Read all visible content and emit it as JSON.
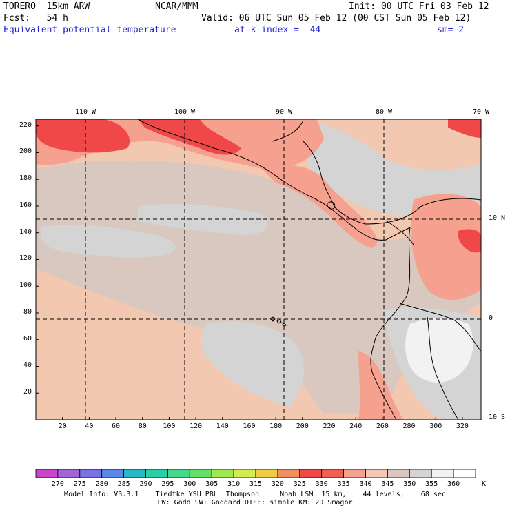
{
  "header": {
    "model": "TORERO  15km ARW",
    "center": "NCAR/MMM",
    "init": "Init: 00 UTC Fri 03 Feb 12",
    "fcst": "Fcst:   54 h",
    "valid": "Valid: 06 UTC Sun 05 Feb 12 (00 CST Sun 05 Feb 12)",
    "field": "Equivalent potential temperature",
    "level": "at k-index =  44",
    "smooth": "sm= 2"
  },
  "axes": {
    "x_ticks": [
      "20",
      "40",
      "60",
      "80",
      "100",
      "120",
      "140",
      "160",
      "180",
      "200",
      "220",
      "240",
      "260",
      "280",
      "300",
      "320"
    ],
    "y_ticks": [
      "220",
      "200",
      "180",
      "160",
      "140",
      "120",
      "100",
      "80",
      "60",
      "40",
      "20"
    ],
    "lon_labels": [
      "110 W",
      "100 W",
      "90 W",
      "80 W",
      "70 W"
    ],
    "lat_labels": [
      "10 N",
      "0",
      "10 S"
    ]
  },
  "colorbar": {
    "labels": [
      "270",
      "275",
      "280",
      "285",
      "290",
      "295",
      "300",
      "305",
      "310",
      "315",
      "320",
      "325",
      "330",
      "335",
      "340",
      "345",
      "350",
      "355",
      "360"
    ],
    "unit": "K",
    "colors": [
      "#cc44cc",
      "#a066d8",
      "#7a70e8",
      "#5a88e8",
      "#28b8c8",
      "#28d0a8",
      "#44d888",
      "#66e066",
      "#a0e850",
      "#d4ec50",
      "#f0cc44",
      "#f09060",
      "#f04848",
      "#f06050",
      "#f6a090",
      "#f2c8b0",
      "#d8c8c0",
      "#d4d4d4",
      "#f2f2f2",
      "#ffffff"
    ]
  },
  "map": {
    "colors": {
      "ocean_base": "#f2c8b0",
      "grey_mid": "#d8c8c0",
      "grey_light": "#d4d4d4",
      "pink": "#f6a090",
      "red": "#f04848",
      "near_white": "#f2f2f2"
    }
  },
  "footer": {
    "line1": "Model Info: V3.3.1    Tiedtke YSU PBL  Thompson     Noah LSM  15 km,    44 levels,    68 sec",
    "line2": "LW: Godd SW: Goddard DIFF: simple KM: 2D Smagor"
  }
}
